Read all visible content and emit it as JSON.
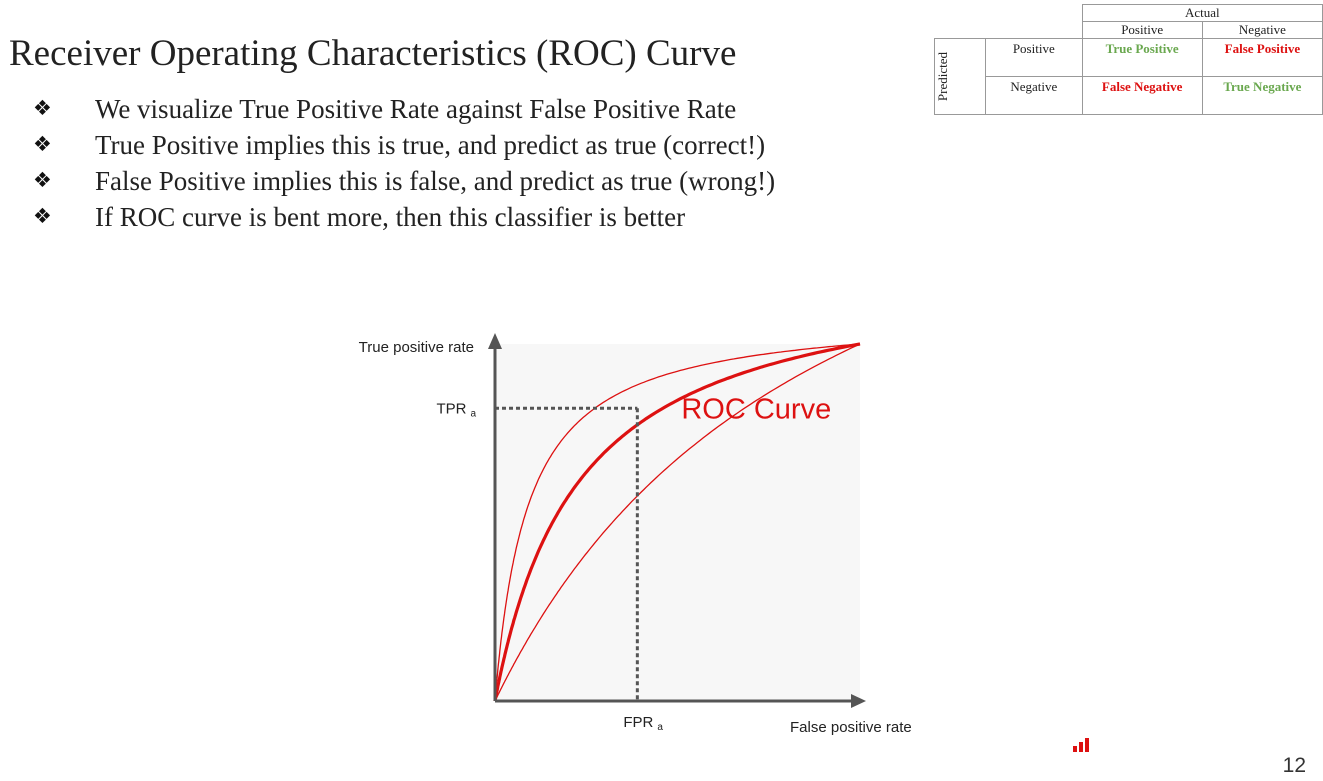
{
  "slide": {
    "title": "Receiver Operating Characteristics (ROC) Curve",
    "bullets": [
      "We visualize True Positive Rate against False Positive Rate",
      "True Positive implies this is true, and predict as true (correct!)",
      "False Positive implies this is false, and predict as true (wrong!)",
      "If ROC curve is bent more, then this classifier is better"
    ],
    "bullet_glyph": "❖",
    "page_number": "12"
  },
  "confusion_matrix": {
    "actual_label": "Actual",
    "predicted_label": "Predicted",
    "columns": [
      "Positive",
      "Negative"
    ],
    "rows": [
      {
        "label": "Positive",
        "cells": [
          "True Positive",
          "False Positive"
        ]
      },
      {
        "label": "Negative",
        "cells": [
          "False Negative",
          "True Negative"
        ]
      }
    ],
    "colors": {
      "correct": "#6aa84f",
      "wrong": "#dd1111"
    }
  },
  "chart_data": {
    "type": "line",
    "ylabel": "True positive rate",
    "xlabel": "False positive rate",
    "series_label": "ROC Curve",
    "tpr_label": "TPR",
    "fpr_label": "FPR",
    "sub_label": "a",
    "marked_point": {
      "x": 0.39,
      "y": 0.82
    },
    "curves": [
      {
        "name": "thin-upper",
        "k": 0.09
      },
      {
        "name": "roc",
        "k": 0.23
      },
      {
        "name": "thin-lower",
        "k": 0.9
      }
    ],
    "colors": {
      "curve": "#dd1111",
      "axis": "#555555",
      "plot_bg": "#f7f7f7",
      "guide": "#555555"
    }
  }
}
